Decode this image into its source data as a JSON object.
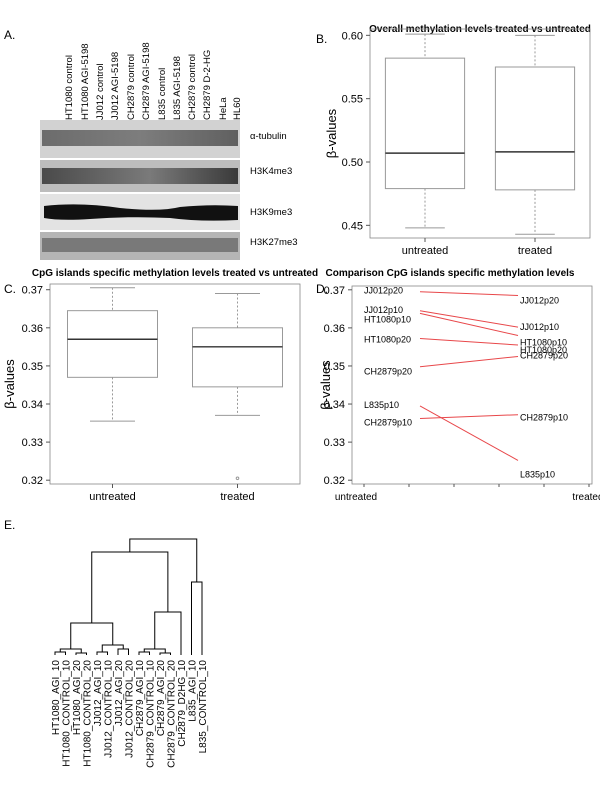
{
  "panels": {
    "a": "A.",
    "b": "B.",
    "c": "C.",
    "d": "D.",
    "e": "E."
  },
  "blot": {
    "lanes": [
      "HT1080 control",
      "HT1080 AGI-5198",
      "JJ012 control",
      "JJ012 AGI-5198",
      "CH2879 control",
      "CH2879 AGI-5198",
      "L835 control",
      "L835 AGI-5198",
      "CH2879 control",
      "CH2879 D-2-HG",
      "HeLa",
      "HL60"
    ],
    "bands": [
      "α-tubulin",
      "H3K4me3",
      "H3K9me3",
      "H3K27me3"
    ]
  },
  "chart_data": [
    {
      "type": "box",
      "title": "Overall methylation levels treated vs untreated",
      "ylabel": "β-values",
      "ylim": [
        0.44,
        0.605
      ],
      "yticks": [
        0.45,
        0.5,
        0.55,
        0.6
      ],
      "yticklabels": [
        "0.45",
        "0.50",
        "0.55",
        "0.60"
      ],
      "categories": [
        "untreated",
        "treated"
      ],
      "boxes": [
        {
          "min": 0.448,
          "q1": 0.479,
          "median": 0.507,
          "q3": 0.582,
          "max": 0.601
        },
        {
          "min": 0.443,
          "q1": 0.478,
          "median": 0.508,
          "q3": 0.575,
          "max": 0.6
        }
      ]
    },
    {
      "type": "box",
      "title": "CpG islands specific methylation levels treated vs untreated",
      "ylabel": "β-values",
      "ylim": [
        0.319,
        0.3715
      ],
      "yticks": [
        0.32,
        0.33,
        0.34,
        0.35,
        0.36,
        0.37
      ],
      "yticklabels": [
        "0.32",
        "0.33",
        "0.34",
        "0.35",
        "0.36",
        "0.37"
      ],
      "categories": [
        "untreated",
        "treated"
      ],
      "boxes": [
        {
          "min": 0.3355,
          "q1": 0.347,
          "median": 0.357,
          "q3": 0.3645,
          "max": 0.3705
        },
        {
          "min": 0.337,
          "q1": 0.3445,
          "median": 0.355,
          "q3": 0.36,
          "max": 0.369,
          "outliers": [
            0.3205
          ]
        }
      ]
    },
    {
      "type": "line",
      "title": "Comparison CpG islands specific methylation levels",
      "ylabel": "β-values",
      "ylim": [
        0.319,
        0.371
      ],
      "yticks": [
        0.32,
        0.33,
        0.34,
        0.35,
        0.36,
        0.37
      ],
      "yticklabels": [
        "0.32",
        "0.33",
        "0.34",
        "0.35",
        "0.36",
        "0.37"
      ],
      "categories": [
        "untreated",
        "treated"
      ],
      "series": [
        {
          "left_label": "JJ012p20",
          "right_label": "JJ012p20",
          "values": [
            0.3695,
            0.3685
          ]
        },
        {
          "left_label": "JJ012p10",
          "right_label": "JJ012p10",
          "values": [
            0.3645,
            0.3602
          ]
        },
        {
          "left_label": "HT1080p10",
          "right_label": "HT1080p10",
          "values": [
            0.3638,
            0.358
          ]
        },
        {
          "left_label": "HT1080p20",
          "right_label": "HT1080p20",
          "values": [
            0.3572,
            0.3555
          ]
        },
        {
          "left_label": "CH2879p20",
          "right_label": "CH2879p20",
          "values": [
            0.3498,
            0.3525
          ]
        },
        {
          "left_label": "L835p10",
          "right_label": "L835p10",
          "values": [
            0.3395,
            0.3252
          ]
        },
        {
          "left_label": "CH2879p10",
          "right_label": "CH2879p10",
          "values": [
            0.3362,
            0.3372
          ]
        }
      ],
      "line_color": "#e8474a"
    },
    {
      "type": "dendrogram",
      "leaves": [
        "HT1080_AGI_10",
        "HT1080_CONTROL_10",
        "HT1080_AGI_20",
        "HT1080_CONTROL_20",
        "JJ012_AGI_10",
        "JJ012_CONTROL_10",
        "JJ012_AGI_20",
        "JJ012_CONTROL_20",
        "CH2879_AGI_10",
        "CH2879_CONTROL_10",
        "CH2879_AGI_20",
        "CH2879_CONTROL_20",
        "CH2879_D2HG_10",
        "L835_AGI_10",
        "L835_CONTROL_10"
      ]
    }
  ]
}
